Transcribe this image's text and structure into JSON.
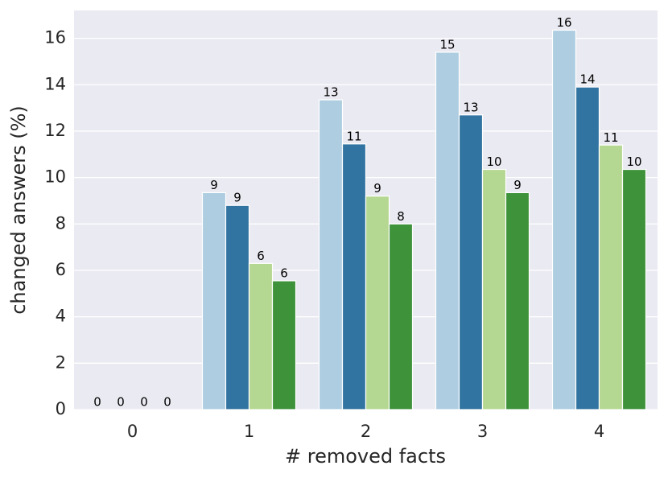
{
  "chart_data": {
    "type": "bar",
    "xlabel": "# removed facts",
    "ylabel": "changed answers (%)",
    "categories": [
      "0",
      "1",
      "2",
      "3",
      "4"
    ],
    "series": [
      {
        "color": "#aecde1",
        "values": [
          0,
          9.35,
          13.35,
          15.4,
          16.35
        ],
        "value_labels": [
          "0",
          "9",
          "13",
          "15",
          "16"
        ]
      },
      {
        "color": "#3274a1",
        "values": [
          0,
          8.8,
          11.45,
          12.7,
          13.9
        ],
        "value_labels": [
          "0",
          "9",
          "11",
          "13",
          "14"
        ]
      },
      {
        "color": "#b4d791",
        "values": [
          0,
          6.3,
          9.2,
          10.35,
          11.4
        ],
        "value_labels": [
          "0",
          "6",
          "9",
          "10",
          "11"
        ]
      },
      {
        "color": "#3d923a",
        "values": [
          0,
          5.55,
          8.0,
          9.35,
          10.35
        ],
        "value_labels": [
          "0",
          "6",
          "8",
          "9",
          "10"
        ]
      }
    ],
    "ylim": [
      0,
      17.2
    ],
    "yticks": [
      0,
      2,
      4,
      6,
      8,
      10,
      12,
      14,
      16
    ],
    "grid": true,
    "background": "#eaeaf2"
  }
}
